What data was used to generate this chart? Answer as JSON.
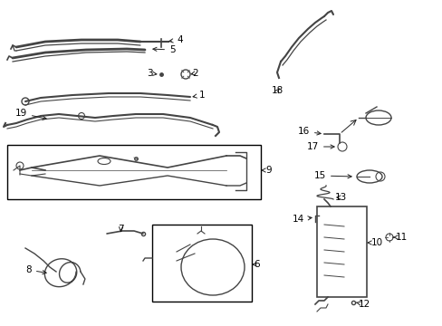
{
  "bg_color": "#ffffff",
  "line_color": "#444444",
  "arrow_color": "#222222",
  "figsize": [
    4.89,
    3.6
  ],
  "dpi": 100,
  "font_size": 7.5
}
